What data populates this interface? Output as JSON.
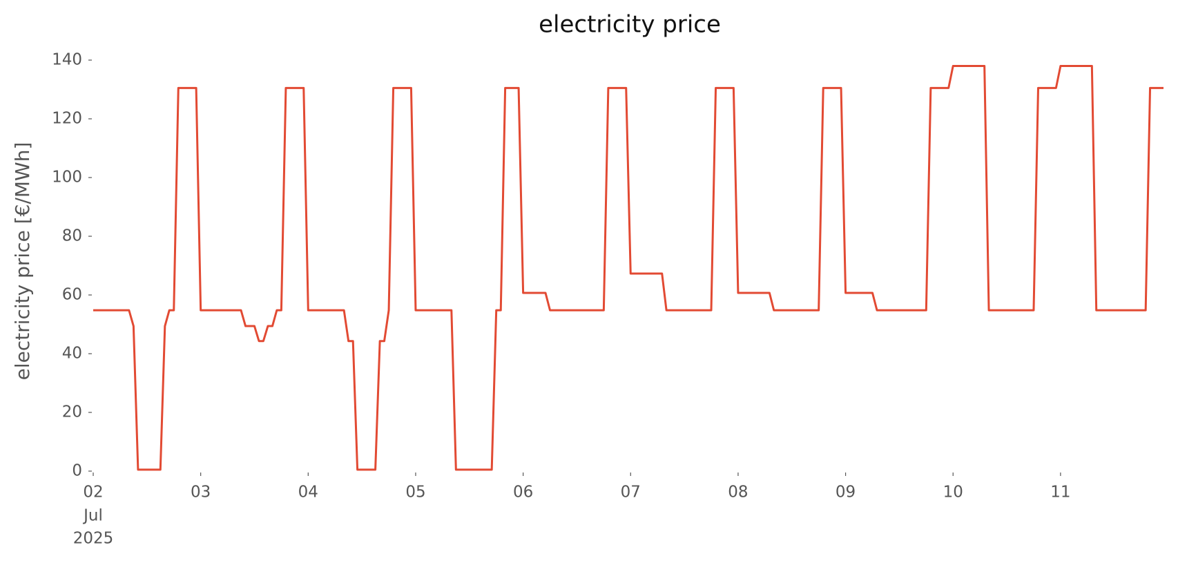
{
  "chart_data": {
    "type": "line",
    "title": "electricity price",
    "ylabel": "electricity price [€/MWh]",
    "x": [
      2,
      2.333,
      2.375,
      2.417,
      2.625,
      2.667,
      2.708,
      2.75,
      2.792,
      2.958,
      3,
      3.375,
      3.417,
      3.5,
      3.542,
      3.583,
      3.625,
      3.667,
      3.708,
      3.75,
      3.792,
      3.958,
      4,
      4.333,
      4.375,
      4.417,
      4.458,
      4.625,
      4.667,
      4.708,
      4.75,
      4.792,
      4.958,
      5,
      5.333,
      5.375,
      5.708,
      5.75,
      5.792,
      5.833,
      5.958,
      6,
      6.208,
      6.25,
      6.75,
      6.792,
      6.958,
      7,
      7.292,
      7.333,
      7.75,
      7.792,
      7.958,
      8,
      8.292,
      8.333,
      8.75,
      8.792,
      8.958,
      9,
      9.25,
      9.292,
      9.75,
      9.792,
      9.958,
      10,
      10.292,
      10.333,
      10.75,
      10.792,
      10.958,
      11,
      11.292,
      11.333,
      11.792,
      11.833,
      11.958
    ],
    "series": [
      {
        "name": "electricity price",
        "color": "#e24a33",
        "values": [
          54.8,
          54.8,
          49.4,
          0.5,
          0.5,
          49.4,
          54.8,
          54.8,
          130.5,
          130.5,
          54.8,
          54.8,
          49.4,
          49.4,
          44.3,
          44.3,
          49.4,
          49.4,
          54.8,
          54.8,
          130.5,
          130.5,
          54.8,
          54.8,
          44.3,
          44.3,
          0.5,
          0.5,
          44.3,
          44.3,
          54.8,
          130.5,
          130.5,
          54.8,
          54.8,
          0.5,
          0.5,
          54.8,
          54.8,
          130.5,
          130.5,
          60.7,
          60.7,
          54.8,
          54.8,
          130.5,
          130.5,
          67.3,
          67.3,
          54.8,
          54.8,
          130.5,
          130.5,
          60.7,
          60.7,
          54.8,
          54.8,
          130.5,
          130.5,
          60.7,
          60.7,
          54.8,
          54.8,
          130.5,
          130.5,
          138,
          138,
          54.8,
          54.8,
          130.5,
          130.5,
          138,
          138,
          54.8,
          54.8,
          130.5,
          130.5
        ]
      }
    ],
    "xlim": [
      2,
      11.958
    ],
    "xticks": [
      {
        "value": 2,
        "label": "02"
      },
      {
        "value": 3,
        "label": "03"
      },
      {
        "value": 4,
        "label": "04"
      },
      {
        "value": 5,
        "label": "05"
      },
      {
        "value": 6,
        "label": "06"
      },
      {
        "value": 7,
        "label": "07"
      },
      {
        "value": 8,
        "label": "08"
      },
      {
        "value": 9,
        "label": "09"
      },
      {
        "value": 10,
        "label": "10"
      },
      {
        "value": 11,
        "label": "11"
      }
    ],
    "xtick_sublabels": [
      "Jul",
      "2025"
    ],
    "ylim": [
      0,
      140
    ],
    "yticks": [
      0,
      20,
      40,
      60,
      80,
      100,
      120,
      140
    ],
    "grid": false
  }
}
